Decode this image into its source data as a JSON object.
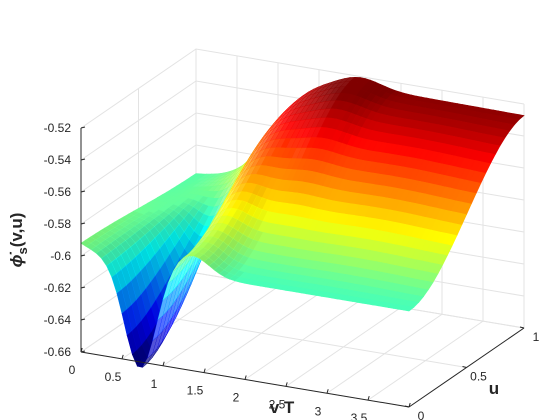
{
  "chart_data": {
    "type": "surface",
    "title": "",
    "xlabel": "v T",
    "ylabel": "u",
    "zlabel_main": "ϕ̇",
    "zlabel_sub": "s",
    "zlabel_args": "(v,u)",
    "xlim": [
      0,
      4
    ],
    "ylim": [
      0,
      1
    ],
    "zlim": [
      -0.66,
      -0.52
    ],
    "xticks": [
      "0",
      "0.5",
      "1",
      "1.5",
      "2",
      "2.5",
      "3",
      "3.5",
      "4"
    ],
    "yticks": [
      "0",
      "0.5",
      "1"
    ],
    "zticks": [
      "-0.52",
      "-0.54",
      "-0.56",
      "-0.58",
      "-0.6",
      "-0.62",
      "-0.64",
      "-0.66"
    ],
    "grid": true,
    "colormap": "jet",
    "samples": {
      "v": [
        0,
        0.25,
        0.5,
        0.75,
        1,
        1.25,
        1.5,
        2,
        2.5,
        3,
        3.5,
        4
      ],
      "u": [
        0,
        0.5,
        1
      ],
      "z_at_u0": [
        -0.593,
        -0.62,
        -0.655,
        -0.66,
        -0.63,
        -0.595,
        -0.58,
        -0.6,
        -0.6,
        -0.6,
        -0.6,
        -0.6
      ],
      "z_at_u1": [
        -0.6,
        -0.58,
        -0.56,
        -0.54,
        -0.535,
        -0.53,
        -0.52,
        -0.525,
        -0.525,
        -0.526,
        -0.527,
        -0.528
      ]
    }
  }
}
